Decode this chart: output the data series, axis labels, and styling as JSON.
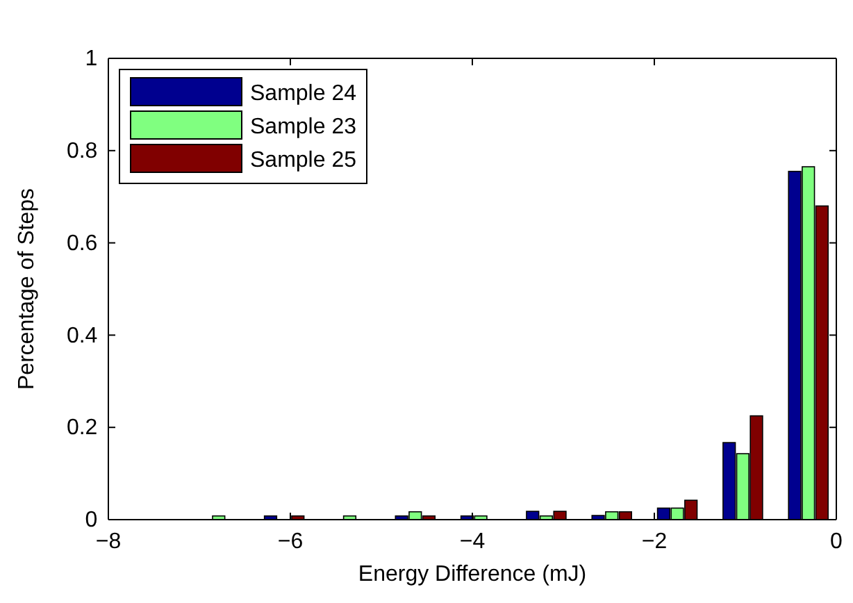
{
  "chart_data": {
    "type": "bar",
    "xlabel": "Energy Difference (mJ)",
    "ylabel": "Percentage of Steps",
    "x": [
      -6.78,
      -6.06,
      -5.34,
      -4.62,
      -3.9,
      -3.18,
      -2.46,
      -1.74,
      -1.02,
      -0.3
    ],
    "series": [
      {
        "name": "Sample 24",
        "color": "#00008f",
        "values": [
          0,
          0.008,
          0,
          0.008,
          0.008,
          0.018,
          0.009,
          0.025,
          0.167,
          0.755
        ]
      },
      {
        "name": "Sample 23",
        "color": "#80ff80",
        "values": [
          0.008,
          0,
          0.008,
          0.017,
          0.008,
          0.008,
          0.017,
          0.025,
          0.143,
          0.765
        ]
      },
      {
        "name": "Sample 25",
        "color": "#800000",
        "values": [
          0,
          0.008,
          0,
          0.008,
          0,
          0.018,
          0.017,
          0.042,
          0.225,
          0.68
        ]
      }
    ],
    "xlim": [
      -8,
      0
    ],
    "xticks": [
      {
        "value": -8,
        "label": "−8"
      },
      {
        "value": -6,
        "label": "−6"
      },
      {
        "value": -4,
        "label": "−4"
      },
      {
        "value": -2,
        "label": "−2"
      },
      0
    ],
    "ylim": [
      0,
      1
    ],
    "yticks": [
      0,
      0.2,
      0.4,
      0.6,
      0.8,
      1
    ],
    "legend": "top left",
    "grid": false
  }
}
